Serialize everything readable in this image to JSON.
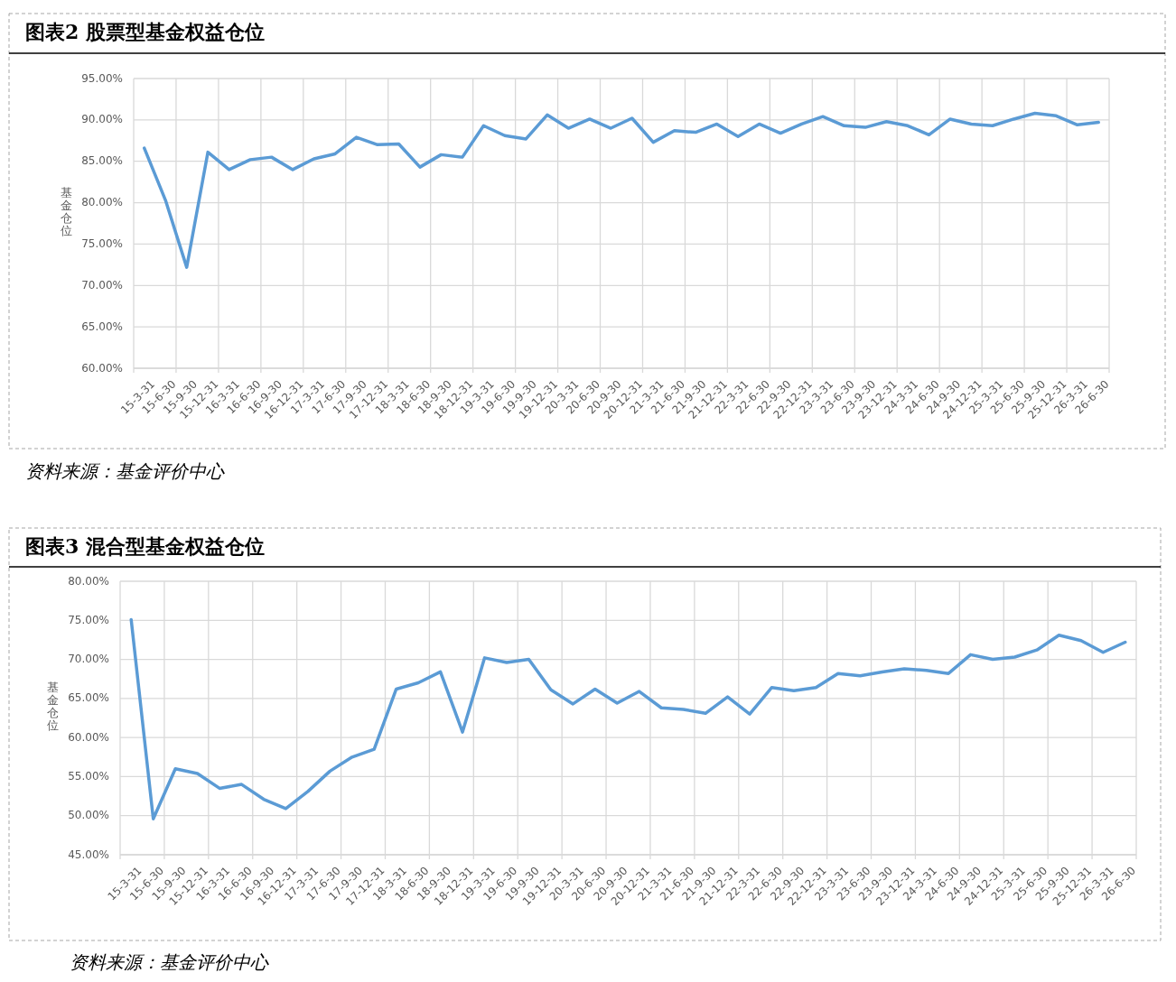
{
  "chart_data": [
    {
      "type": "line",
      "title": "图表2 股票型基金权益仓位",
      "ylabel": "基金仓位",
      "categories": [
        "15-3-31",
        "15-6-30",
        "15-9-30",
        "15-12-31",
        "16-3-31",
        "16-6-30",
        "16-9-30",
        "16-12-31",
        "17-3-31",
        "17-6-30",
        "17-9-30",
        "17-12-31",
        "18-3-31",
        "18-6-30",
        "18-9-30",
        "18-12-31",
        "19-3-31",
        "19-6-30",
        "19-9-30",
        "19-12-31",
        "20-3-31",
        "20-6-30",
        "20-9-30",
        "20-12-31",
        "21-3-31",
        "21-6-30",
        "21-9-30",
        "21-12-31",
        "22-3-31",
        "22-6-30",
        "22-9-30",
        "22-12-31",
        "23-3-31",
        "23-6-30",
        "23-9-30",
        "23-12-31",
        "24-3-31",
        "24-6-30",
        "24-9-30",
        "24-12-31",
        "25-3-31",
        "25-6-30",
        "25-9-30",
        "25-12-31",
        "26-3-31",
        "26-6-30"
      ],
      "series": [
        {
          "color": "#5b9bd5",
          "values": [
            86.6,
            80.3,
            72.2,
            86.1,
            84.0,
            85.2,
            85.5,
            84.0,
            85.3,
            85.9,
            87.9,
            87.0,
            87.1,
            84.3,
            85.8,
            85.5,
            89.3,
            88.1,
            87.7,
            90.6,
            89.0,
            90.1,
            89.0,
            90.2,
            87.3,
            88.7,
            88.5,
            89.5,
            88.0,
            89.5,
            88.4,
            89.5,
            90.4,
            89.3,
            89.1,
            89.8,
            89.3,
            88.2,
            90.1,
            89.5,
            89.3,
            90.1,
            90.8,
            90.5,
            89.4,
            89.7
          ]
        }
      ],
      "ylim": [
        60,
        95
      ],
      "yticks": [
        {
          "value": 60,
          "label": "60.00%"
        },
        {
          "value": 65,
          "label": "65.00%"
        },
        {
          "value": 70,
          "label": "70.00%"
        },
        {
          "value": 75,
          "label": "75.00%"
        },
        {
          "value": 80,
          "label": "80.00%"
        },
        {
          "value": 85,
          "label": "85.00%"
        },
        {
          "value": 90,
          "label": "90.00%"
        },
        {
          "value": 95,
          "label": "95.00%"
        }
      ],
      "grid": true,
      "marker": "none",
      "line_style": "solid",
      "annotations": [
        "资料来源：基金评价中心"
      ]
    },
    {
      "type": "line",
      "title": "图表3 混合型基金权益仓位",
      "ylabel": "基金仓位",
      "categories": [
        "15-3-31",
        "15-6-30",
        "15-9-30",
        "15-12-31",
        "16-3-31",
        "16-6-30",
        "16-9-30",
        "16-12-31",
        "17-3-31",
        "17-6-30",
        "17-9-30",
        "17-12-31",
        "18-3-31",
        "18-6-30",
        "18-9-30",
        "18-12-31",
        "19-3-31",
        "19-6-30",
        "19-9-30",
        "19-12-31",
        "20-3-31",
        "20-6-30",
        "20-9-30",
        "20-12-31",
        "21-3-31",
        "21-6-30",
        "21-9-30",
        "21-12-31",
        "22-3-31",
        "22-6-30",
        "22-9-30",
        "22-12-31",
        "23-3-31",
        "23-6-30",
        "23-9-30",
        "23-12-31",
        "24-3-31",
        "24-6-30",
        "24-9-30",
        "24-12-31",
        "25-3-31",
        "25-6-30",
        "25-9-30",
        "25-12-31",
        "26-3-31",
        "26-6-30"
      ],
      "series": [
        {
          "color": "#5b9bd5",
          "values": [
            75.1,
            49.6,
            56.0,
            55.4,
            53.5,
            54.0,
            52.1,
            50.9,
            53.1,
            55.7,
            57.5,
            58.5,
            66.2,
            67.0,
            68.4,
            60.7,
            70.2,
            69.6,
            70.0,
            66.1,
            64.3,
            66.2,
            64.4,
            65.9,
            63.8,
            63.6,
            63.1,
            65.2,
            63.0,
            66.4,
            66.0,
            66.4,
            68.2,
            67.9,
            68.4,
            68.8,
            68.6,
            68.2,
            70.6,
            70.0,
            70.3,
            71.2,
            73.1,
            72.4,
            70.9,
            72.2
          ]
        }
      ],
      "ylim": [
        45,
        80
      ],
      "yticks": [
        {
          "value": 45,
          "label": "45.00%"
        },
        {
          "value": 50,
          "label": "50.00%"
        },
        {
          "value": 55,
          "label": "55.00%"
        },
        {
          "value": 60,
          "label": "60.00%"
        },
        {
          "value": 65,
          "label": "65.00%"
        },
        {
          "value": 70,
          "label": "70.00%"
        },
        {
          "value": 75,
          "label": "75.00%"
        },
        {
          "value": 80,
          "label": "80.00%"
        }
      ],
      "grid": true,
      "marker": "none",
      "line_style": "solid",
      "annotations": [
        "资料来源：基金评价中心"
      ]
    }
  ]
}
